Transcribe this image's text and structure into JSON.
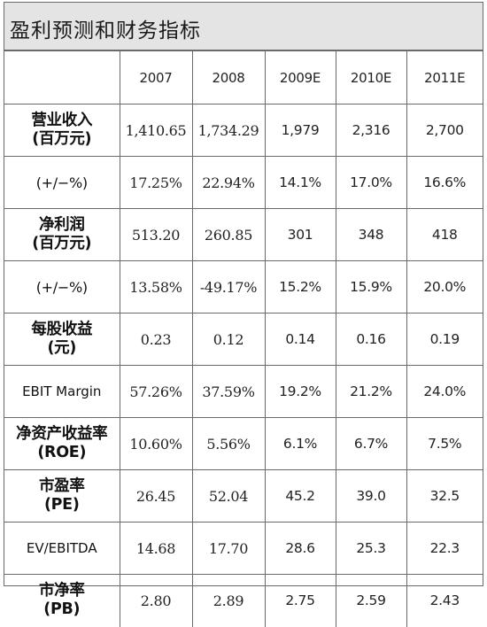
{
  "title": "盈利预测和财务指标",
  "header": {
    "columns": [
      "2007",
      "2008",
      "2009E",
      "2010E",
      "2011E"
    ]
  },
  "rows": [
    {
      "label_line1": "营业收入",
      "label_line2": "(百万元)",
      "values": [
        "1,410.65",
        "1,734.29",
        "1,979",
        "2,316",
        "2,700"
      ]
    },
    {
      "label_line1": "(+/−%)",
      "label_line2": "",
      "values": [
        "17.25%",
        "22.94%",
        "14.1%",
        "17.0%",
        "16.6%"
      ]
    },
    {
      "label_line1": "净利润",
      "label_line2": "(百万元)",
      "values": [
        "513.20",
        "260.85",
        "301",
        "348",
        "418"
      ]
    },
    {
      "label_line1": "(+/−%)",
      "label_line2": "",
      "values": [
        "13.58%",
        "-49.17%",
        "15.2%",
        "15.9%",
        "20.0%"
      ]
    },
    {
      "label_line1": "每股收益",
      "label_line2": "(元)",
      "values": [
        "0.23",
        "0.12",
        "0.14",
        "0.16",
        "0.19"
      ]
    },
    {
      "label_line1": "EBIT Margin",
      "label_line2": "",
      "values": [
        "57.26%",
        "37.59%",
        "19.2%",
        "21.2%",
        "24.0%"
      ]
    },
    {
      "label_line1": "净资产收益率",
      "label_line2": "(ROE)",
      "values": [
        "10.60%",
        "5.56%",
        "6.1%",
        "6.7%",
        "7.5%"
      ]
    },
    {
      "label_line1": "市盈率",
      "label_line2": "(PE)",
      "values": [
        "26.45",
        "52.04",
        "45.2",
        "39.0",
        "32.5"
      ]
    },
    {
      "label_line1": "EV/EBITDA",
      "label_line2": "",
      "values": [
        "14.68",
        "17.70",
        "28.6",
        "25.3",
        "22.3"
      ]
    },
    {
      "label_line1": "市净率",
      "label_line2": "(PB)",
      "values": [
        "2.80",
        "2.89",
        "2.75",
        "2.59",
        "2.43"
      ]
    }
  ]
}
